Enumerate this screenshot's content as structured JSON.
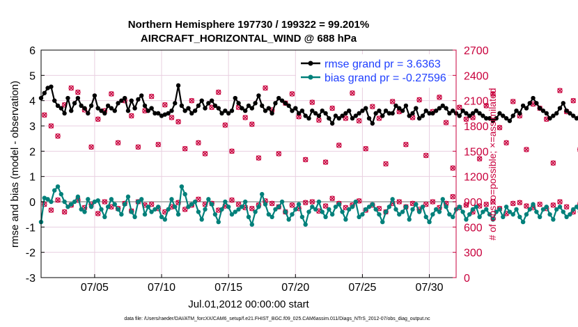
{
  "chart_data": {
    "type": "line",
    "title_line1": "Northern Hemisphere 197730 / 199322 = 99.201%",
    "title_line2": "AIRCRAFT_HORIZONTAL_WIND @ 688 hPa",
    "xlabel": "Jul.01,2012 00:00:00 start",
    "ylabel": "rmse and bias (model - observation)",
    "ylabel_right": "# of obs: o=possible; ×=assimilated",
    "footnote": "data file: /Users/raeder/DAI/ATM_forcXX/CAM6_setup/f.e21.FHIST_BGC.f09_025.CAM6assim.011/Diags_NTrS_2012-07/obs_diag_output.nc",
    "x_range_days": [
      1,
      32
    ],
    "ylim": [
      -3,
      6
    ],
    "y2lim": [
      0,
      2700
    ],
    "x_ticks": [
      {
        "day": 5,
        "label": "07/05"
      },
      {
        "day": 10,
        "label": "07/10"
      },
      {
        "day": 15,
        "label": "07/15"
      },
      {
        "day": 20,
        "label": "07/20"
      },
      {
        "day": 25,
        "label": "07/25"
      },
      {
        "day": 30,
        "label": "07/30"
      }
    ],
    "y_ticks": [
      {
        "v": -3,
        "label": "-3"
      },
      {
        "v": -2,
        "label": "-2"
      },
      {
        "v": -1,
        "label": "-1"
      },
      {
        "v": 0,
        "label": "0"
      },
      {
        "v": 1,
        "label": "1"
      },
      {
        "v": 2,
        "label": "2"
      },
      {
        "v": 3,
        "label": "3"
      },
      {
        "v": 4,
        "label": "4"
      },
      {
        "v": 5,
        "label": "5"
      },
      {
        "v": 6,
        "label": "6"
      }
    ],
    "y2_ticks": [
      {
        "v": 0,
        "label": "0"
      },
      {
        "v": 300,
        "label": "300"
      },
      {
        "v": 600,
        "label": "600"
      },
      {
        "v": 900,
        "label": "900"
      },
      {
        "v": 1200,
        "label": "1200"
      },
      {
        "v": 1500,
        "label": "1500"
      },
      {
        "v": 1800,
        "label": "1800"
      },
      {
        "v": 2100,
        "label": "2100"
      },
      {
        "v": 2400,
        "label": "2400"
      },
      {
        "v": 2700,
        "label": "2700"
      }
    ],
    "x_step_days": 0.25,
    "series": [
      {
        "name": "rmse",
        "label": "rmse grand pr = 3.6363",
        "color": "#000000",
        "values": [
          4.1,
          4.3,
          4.5,
          4.55,
          4.0,
          3.8,
          3.7,
          3.5,
          4.1,
          3.6,
          3.9,
          4.1,
          3.8,
          3.7,
          3.5,
          3.8,
          4.2,
          3.7,
          3.6,
          3.5,
          3.8,
          3.7,
          3.6,
          3.9,
          4.0,
          4.1,
          3.6,
          4.0,
          3.7,
          4.05,
          4.2,
          3.8,
          3.6,
          3.7,
          3.5,
          3.5,
          3.4,
          3.45,
          3.5,
          3.6,
          3.9,
          4.6,
          3.8,
          3.6,
          3.7,
          3.5,
          3.6,
          3.8,
          4.0,
          3.7,
          3.9,
          4.0,
          3.8,
          3.7,
          3.5,
          3.6,
          3.5,
          3.6,
          4.1,
          3.9,
          3.7,
          3.6,
          3.8,
          3.7,
          3.9,
          4.2,
          3.8,
          3.6,
          3.7,
          3.5,
          3.9,
          4.1,
          4.0,
          3.9,
          3.8,
          3.6,
          3.7,
          3.5,
          3.6,
          3.4,
          3.3,
          3.6,
          3.5,
          3.4,
          3.6,
          3.5,
          3.3,
          3.1,
          3.4,
          3.3,
          3.4,
          3.5,
          3.6,
          3.3,
          3.4,
          3.5,
          3.6,
          3.7,
          3.3,
          3.1,
          3.5,
          3.6,
          3.4,
          3.6,
          3.5,
          3.5,
          3.8,
          3.7,
          3.6,
          3.8,
          3.4,
          3.5,
          3.7,
          3.3,
          3.4,
          3.6,
          3.5,
          3.5,
          3.6,
          3.7,
          3.8,
          3.7,
          3.5,
          3.6,
          3.5,
          3.4,
          3.6,
          3.5,
          3.4,
          3.5,
          3.6,
          3.5,
          3.4,
          3.3,
          3.3,
          3.2,
          3.3,
          3.5,
          3.4,
          3.3,
          3.2,
          3.4,
          3.6,
          3.5,
          3.8,
          3.7,
          3.9,
          4.1,
          3.9,
          3.7,
          3.6,
          3.5,
          3.3,
          3.4,
          3.5,
          3.7,
          3.9,
          3.6,
          3.5,
          3.4,
          3.3,
          3.4,
          3.2,
          3.1,
          3.3,
          3.5,
          3.6,
          3.4,
          3.5,
          3.6,
          3.7,
          3.5,
          3.6,
          3.5,
          3.55
        ]
      },
      {
        "name": "bias",
        "label": "bias grand pr = -0.27596",
        "color": "#00807a",
        "values": [
          -0.8,
          0.15,
          0.1,
          0.0,
          0.45,
          0.6,
          0.3,
          0.0,
          -0.2,
          -0.1,
          0.0,
          0.2,
          -0.3,
          -0.4,
          0.1,
          -0.2,
          0.0,
          0.05,
          -0.3,
          -0.6,
          -0.2,
          0.1,
          -0.1,
          -0.3,
          -0.5,
          -0.1,
          0.2,
          -0.4,
          -0.6,
          0.0,
          0.1,
          -0.5,
          -0.2,
          -0.4,
          -0.3,
          -0.2,
          -0.6,
          -0.7,
          -0.3,
          0.1,
          -0.2,
          -0.5,
          0.6,
          0.3,
          -0.2,
          -0.1,
          0.0,
          -0.4,
          -0.7,
          -0.3,
          0.1,
          -0.1,
          -0.5,
          -0.8,
          -0.3,
          0.0,
          -0.2,
          -0.5,
          -0.4,
          -0.3,
          -0.2,
          0.0,
          -0.6,
          -0.9,
          -0.4,
          -0.2,
          0.3,
          -0.1,
          -0.5,
          -0.6,
          -0.3,
          -0.2,
          0.0,
          -0.4,
          -0.7,
          -0.5,
          -0.3,
          -0.1,
          -0.6,
          -0.9,
          -0.4,
          -0.2,
          -0.3,
          0.0,
          -0.4,
          -0.6,
          -0.3,
          -0.5,
          -0.2,
          -0.1,
          -0.4,
          -0.7,
          -0.3,
          -0.2,
          0.0,
          -0.6,
          -0.5,
          -0.3,
          -0.2,
          -0.1,
          -0.3,
          -0.5,
          -0.8,
          -0.4,
          -0.2,
          0.1,
          -0.3,
          -0.5,
          -0.4,
          -0.2,
          -0.7,
          -0.3,
          -0.1,
          -0.4,
          -0.2,
          -0.6,
          -0.8,
          -0.5,
          -0.3,
          -0.4,
          0.1,
          -0.2,
          -0.5,
          -0.6,
          -0.3,
          -0.2,
          -0.4,
          -0.7,
          -0.5,
          -0.3,
          -0.2,
          -0.6,
          -0.4,
          -0.3,
          -0.5,
          -0.7,
          -0.4,
          -0.3,
          -0.6,
          -0.2,
          -0.4,
          -0.5,
          -0.3,
          -0.6,
          -0.8,
          -0.5,
          -0.3,
          -0.1,
          -0.4,
          -0.6,
          -0.3,
          -0.2,
          -0.5,
          -0.7,
          -0.3,
          -0.2,
          -0.4,
          -0.6,
          -0.5,
          -0.3,
          -0.2,
          -0.4,
          -0.6,
          -0.8,
          -0.3,
          -0.2,
          -0.1,
          -0.2,
          -0.4,
          -0.3,
          -0.2,
          -0.1,
          0.0,
          -0.1,
          0.2
        ]
      }
    ],
    "obs_count_step_days": 0.5,
    "obs_counts": [
      1930,
      1800,
      1680,
      2050,
      2250,
      2200,
      1990,
      1550,
      1880,
      1980,
      2180,
      1600,
      2100,
      1920,
      1550,
      1980,
      2150,
      1580,
      2050,
      1900,
      1850,
      1530,
      2100,
      1600,
      1470,
      2020,
      2200,
      1810,
      1500,
      2020,
      1900,
      1820,
      1420,
      2250,
      1990,
      1470,
      2070,
      2180,
      1910,
      1400,
      2080,
      1870,
      1370,
      2010,
      1570,
      1890,
      2190,
      1860,
      1530,
      2030,
      1890,
      1350,
      2090,
      1970,
      1580,
      1900,
      2110,
      1450,
      1970,
      2140,
      1840,
      1300,
      2020,
      1880,
      1900,
      1410,
      2040,
      2180,
      1780,
      1600,
      2090,
      1920,
      1520,
      2060,
      2010,
      1880,
      1360,
      2220,
      1970,
      2100,
      1520,
      2050,
      1880,
      1580,
      2000,
      1800,
      1380,
      2050,
      1980,
      1620,
      2150,
      2010,
      1460,
      1960,
      2050,
      1620,
      2150,
      2280,
      1940,
      1450,
      2080,
      1950,
      1600,
      2150,
      1980,
      2120,
      1700,
      1590,
      1980,
      2050,
      1750,
      1520,
      2060,
      2100,
      1680,
      1550,
      2260,
      1950,
      1820,
      1550,
      1980,
      2090,
      1700,
      1500,
      1990,
      2120,
      1600
    ],
    "obs_counts_low": [
      870,
      800,
      920,
      780,
      860,
      920,
      830,
      870,
      760,
      900,
      840,
      820,
      880,
      790,
      900,
      860,
      870,
      820,
      780,
      840,
      890,
      810,
      860,
      930,
      870,
      880,
      800,
      850,
      920,
      870,
      830,
      820,
      860,
      910,
      880,
      840,
      780,
      860,
      820,
      890,
      900,
      790,
      850,
      940,
      880,
      830,
      860,
      910,
      800,
      860,
      820,
      780,
      880,
      900,
      840,
      880,
      810,
      870,
      900,
      830,
      880,
      960,
      830,
      860,
      780,
      850,
      870,
      900,
      820,
      760,
      880,
      890,
      850,
      830,
      870,
      820,
      860,
      900,
      840,
      780,
      870,
      820,
      900,
      860,
      800,
      880,
      850,
      1000,
      870,
      830,
      880,
      860,
      810,
      870,
      900,
      840,
      850,
      860,
      850,
      880,
      870,
      830,
      850,
      860,
      870,
      840,
      880,
      850,
      850,
      830,
      870,
      860,
      840,
      850,
      890,
      860,
      850,
      880,
      850,
      840,
      870,
      850,
      860,
      850,
      870,
      850,
      0
    ],
    "colors": {
      "rmse": "#000000",
      "bias": "#00807a",
      "obs": "#c8003c",
      "legend_text": "#1f3fff",
      "grid": "#e8cfe0",
      "zero_line": "#b4b4b4"
    }
  }
}
